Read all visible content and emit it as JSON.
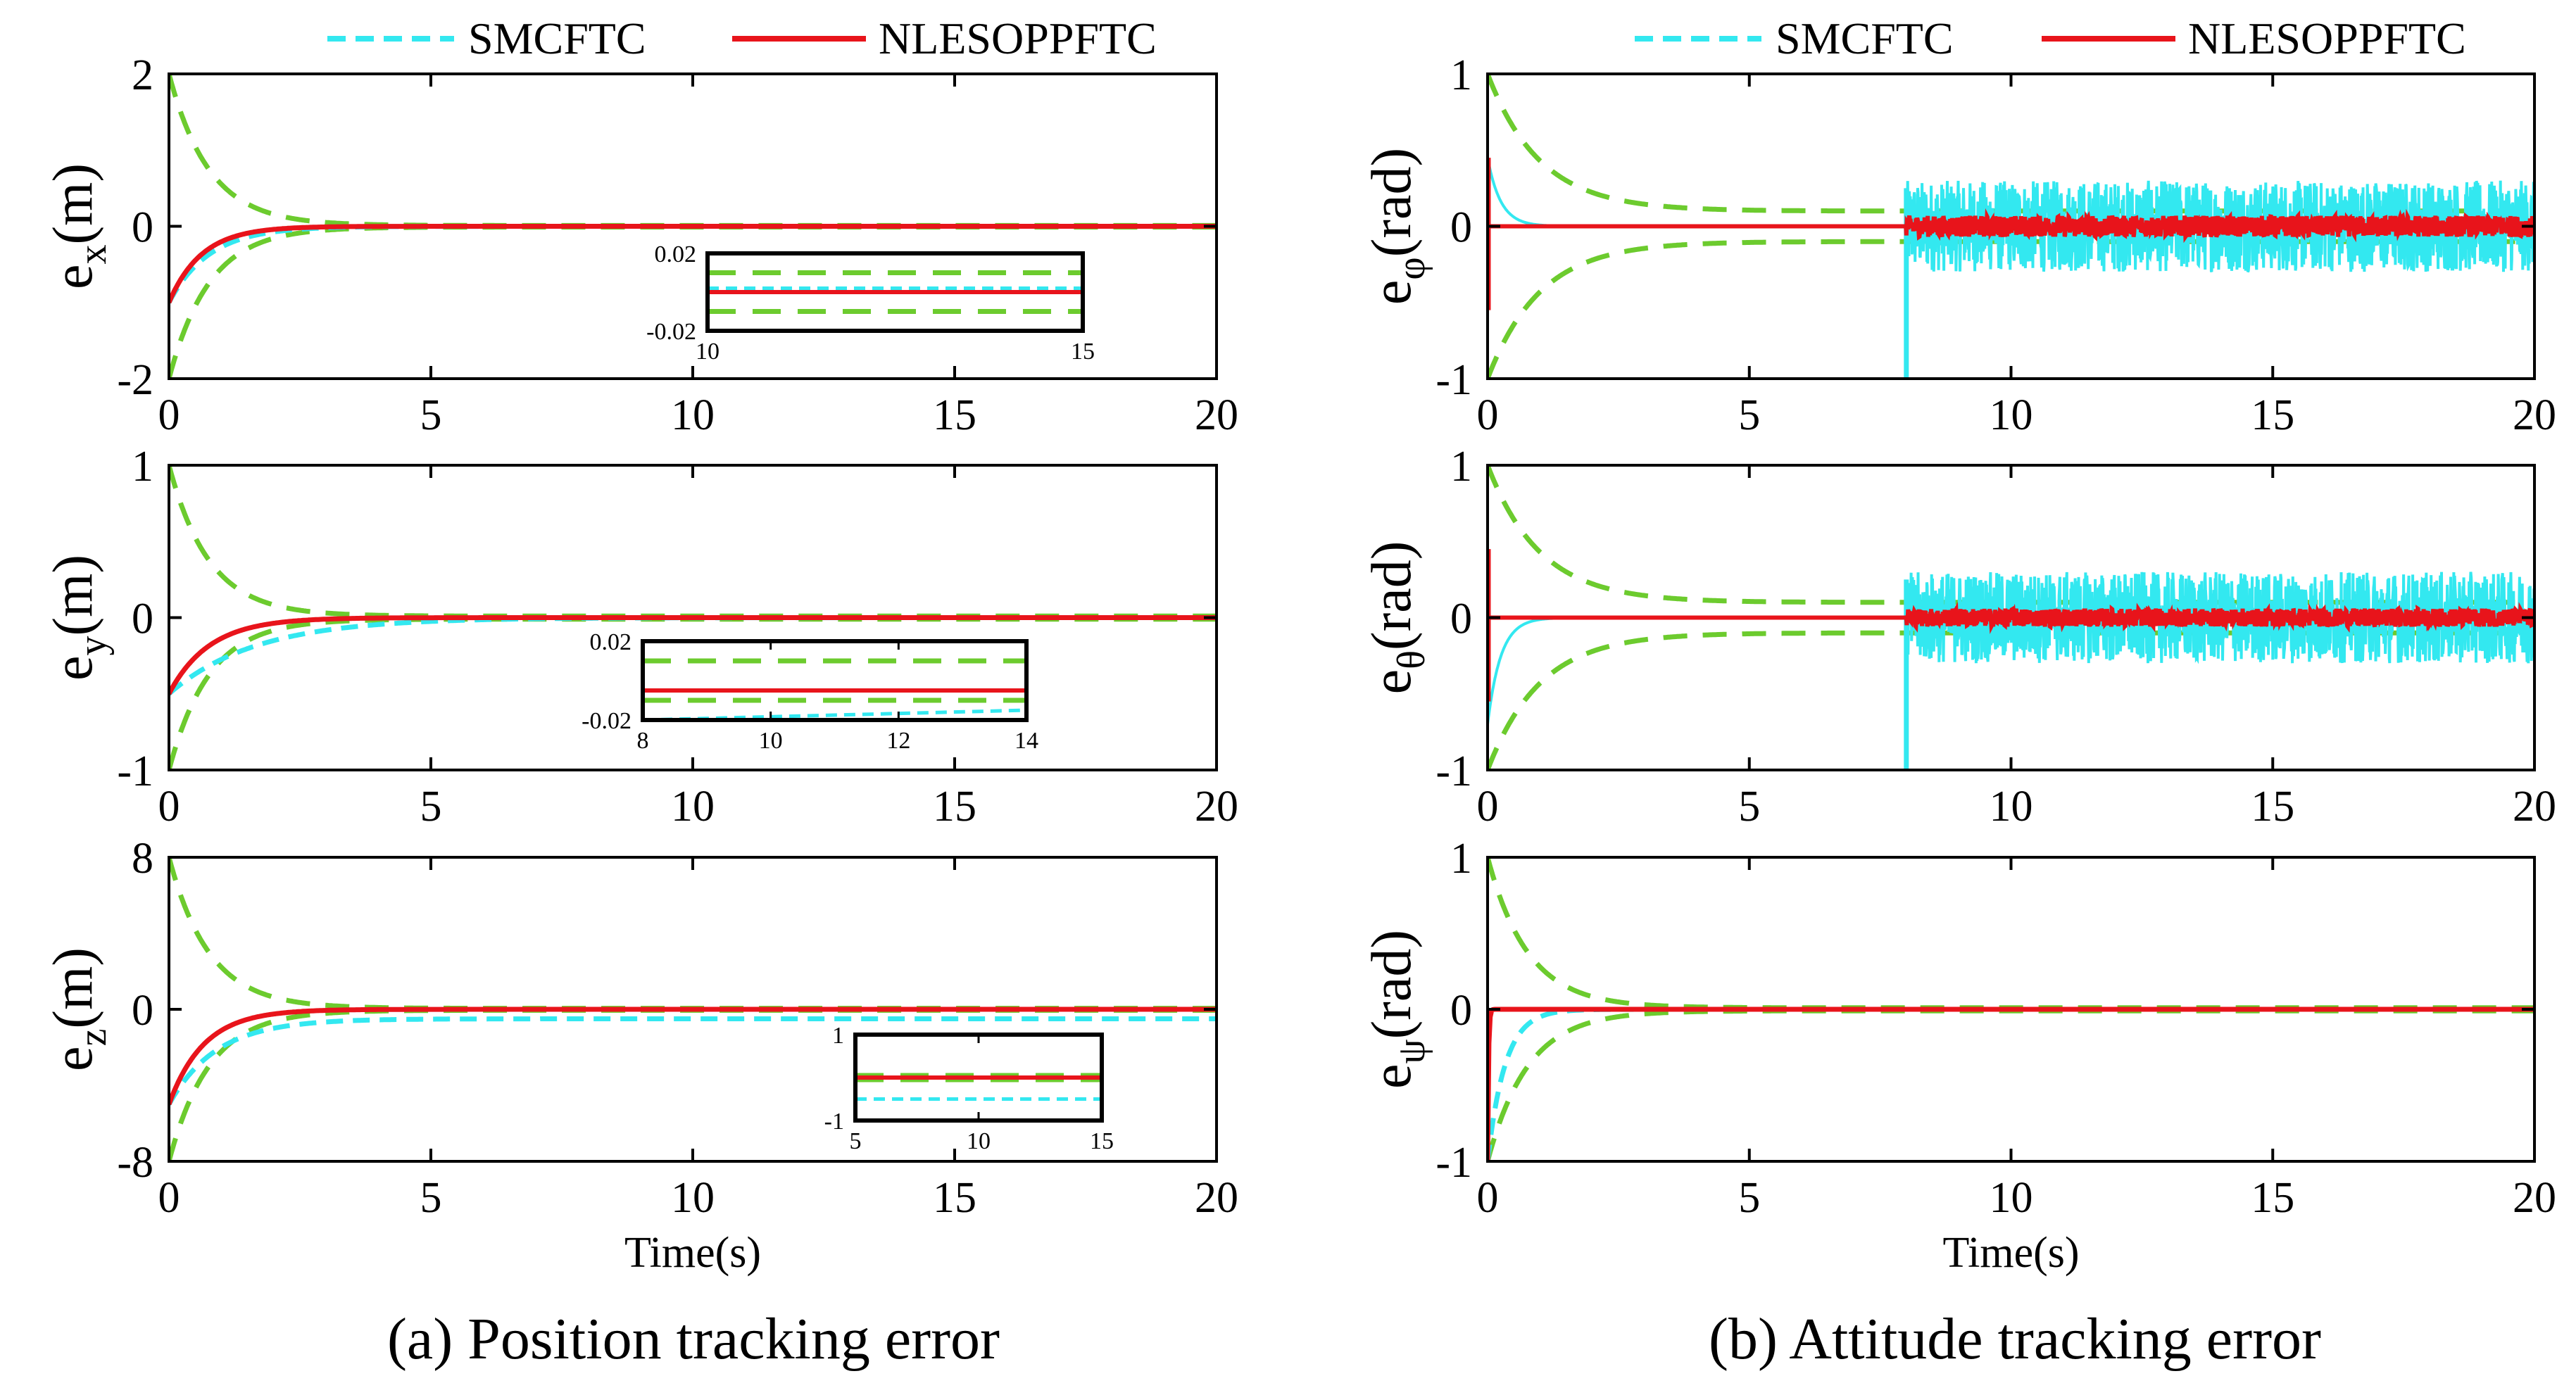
{
  "colors": {
    "smc": "#33e8f0",
    "nleso": "#e8141b",
    "bound": "#6ccb2e",
    "axis": "#000000"
  },
  "legend": {
    "smc_label": "SMCFTC",
    "nleso_label": "NLESOPPFTC"
  },
  "captions": {
    "a": "(a) Position tracking error",
    "b": "(b) Attitude tracking error"
  },
  "chart_data": [
    {
      "id": "ex",
      "type": "line",
      "column": "a",
      "row": 0,
      "ylabel_main": "e",
      "ylabel_sub": "x",
      "ylabel_unit": "(m)",
      "xlim": [
        0,
        20
      ],
      "ylim": [
        -2,
        2
      ],
      "xticks": [
        0,
        5,
        10,
        15,
        20
      ],
      "yticks": [
        -2,
        0,
        2
      ],
      "xlabel": "",
      "bound_init": 2,
      "bound_final": 0.01,
      "bound_rate": 1.3,
      "nleso_init": -1,
      "nleso_rate": 1.6,
      "smc_init": -1,
      "smc_rate": 1.3,
      "smc_final": 0,
      "noise_start": null,
      "noise_amp_smc": 0,
      "noise_amp_nleso": 0,
      "inset": {
        "xlim": [
          10,
          15
        ],
        "ylim": [
          -0.02,
          0.02
        ],
        "xticks": [
          10,
          15
        ],
        "yticks": [
          -0.02,
          0.02
        ],
        "bound_val": 0.01,
        "nleso_val": 0.0,
        "smc_val": 0.002,
        "smc_drift": 0
      }
    },
    {
      "id": "ey",
      "type": "line",
      "column": "a",
      "row": 1,
      "ylabel_main": "e",
      "ylabel_sub": "y",
      "ylabel_unit": "(m)",
      "xlim": [
        0,
        20
      ],
      "ylim": [
        -1,
        1
      ],
      "xticks": [
        0,
        5,
        10,
        15,
        20
      ],
      "yticks": [
        -1,
        0,
        1
      ],
      "xlabel": "",
      "bound_init": 1,
      "bound_final": 0.01,
      "bound_rate": 1.3,
      "nleso_init": -0.5,
      "nleso_rate": 1.3,
      "smc_init": -0.5,
      "smc_rate": 0.6,
      "smc_final": 0,
      "noise_start": null,
      "noise_amp_smc": 0,
      "noise_amp_nleso": 0,
      "inset": {
        "xlim": [
          8,
          14
        ],
        "ylim": [
          -0.02,
          0.02
        ],
        "xticks": [
          8,
          10,
          12,
          14
        ],
        "yticks": [
          0.02,
          -0.02
        ],
        "bound_val": 0.01,
        "nleso_val": -0.005,
        "smc_val": -0.02,
        "smc_drift": 0.005
      }
    },
    {
      "id": "ez",
      "type": "line",
      "column": "a",
      "row": 2,
      "ylabel_main": "e",
      "ylabel_sub": "z",
      "ylabel_unit": "(m)",
      "xlim": [
        0,
        20
      ],
      "ylim": [
        -8,
        8
      ],
      "xticks": [
        0,
        5,
        10,
        15,
        20
      ],
      "yticks": [
        -8,
        0,
        8
      ],
      "xlabel": "Time(s)",
      "bound_init": 8,
      "bound_final": 0.05,
      "bound_rate": 1.3,
      "nleso_init": -5,
      "nleso_rate": 1.5,
      "smc_init": -5,
      "smc_rate": 1.1,
      "smc_final": -0.5,
      "noise_start": null,
      "noise_amp_smc": 0,
      "noise_amp_nleso": 0,
      "inset": {
        "xlim": [
          5,
          15
        ],
        "ylim": [
          -1,
          1
        ],
        "xticks": [
          5,
          10,
          15
        ],
        "yticks": [
          1,
          -1
        ],
        "bound_val": 0.05,
        "nleso_val": 0.0,
        "smc_val": -0.5,
        "smc_drift": 0
      }
    },
    {
      "id": "ephi",
      "type": "line",
      "column": "b",
      "row": 0,
      "ylabel_main": "e",
      "ylabel_sub": "φ",
      "ylabel_unit": "(rad)",
      "xlim": [
        0,
        20
      ],
      "ylim": [
        -1,
        1
      ],
      "xticks": [
        0,
        5,
        10,
        15,
        20
      ],
      "yticks": [
        -1,
        0,
        1
      ],
      "xlabel": "",
      "bound_init": 1,
      "bound_final": 0.1,
      "bound_rate": 1.0,
      "nleso_init": 0,
      "nleso_rate": 3,
      "smc_init": 0.45,
      "smc_rate": 4,
      "smc_final": 0,
      "noise_start": 8,
      "noise_amp_smc": 0.3,
      "noise_amp_nleso": 0.07,
      "inset": null
    },
    {
      "id": "etheta",
      "type": "line",
      "column": "b",
      "row": 1,
      "ylabel_main": "e",
      "ylabel_sub": "θ",
      "ylabel_unit": "(rad)",
      "xlim": [
        0,
        20
      ],
      "ylim": [
        -1,
        1
      ],
      "xticks": [
        0,
        5,
        10,
        15,
        20
      ],
      "yticks": [
        -1,
        0,
        1
      ],
      "xlabel": "",
      "bound_init": 1,
      "bound_final": 0.1,
      "bound_rate": 1.0,
      "nleso_init": 0,
      "nleso_rate": 3,
      "smc_init": -0.7,
      "smc_rate": 4,
      "smc_final": 0,
      "noise_start": 8,
      "noise_amp_smc": 0.3,
      "noise_amp_nleso": 0.06,
      "inset": null
    },
    {
      "id": "epsi",
      "type": "line",
      "column": "b",
      "row": 2,
      "ylabel_main": "e",
      "ylabel_sub": "ψ",
      "ylabel_unit": "(rad)",
      "xlim": [
        0,
        20
      ],
      "ylim": [
        -1,
        1
      ],
      "xticks": [
        0,
        5,
        10,
        15,
        20
      ],
      "yticks": [
        -1,
        0,
        1
      ],
      "xlabel": "Time(s)",
      "bound_init": 1,
      "bound_final": 0.01,
      "bound_rate": 1.3,
      "nleso_init": -1,
      "nleso_rate": 60,
      "smc_init": -1,
      "smc_rate": 3,
      "smc_final": 0,
      "noise_start": null,
      "noise_amp_smc": 0,
      "noise_amp_nleso": 0,
      "inset": null
    }
  ]
}
